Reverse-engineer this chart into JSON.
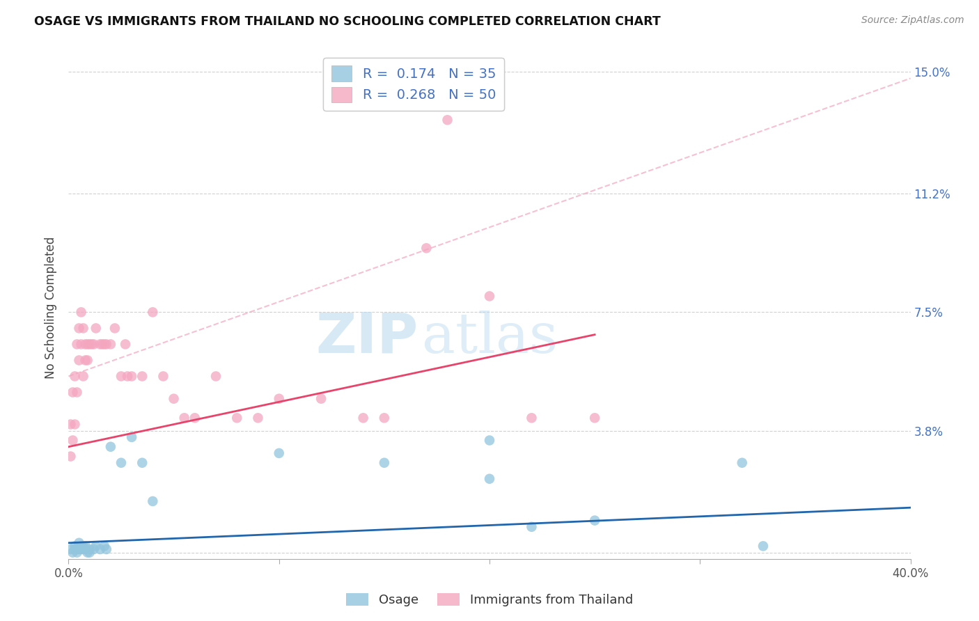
{
  "title": "OSAGE VS IMMIGRANTS FROM THAILAND NO SCHOOLING COMPLETED CORRELATION CHART",
  "source": "Source: ZipAtlas.com",
  "ylabel": "No Schooling Completed",
  "xlim": [
    0.0,
    0.4
  ],
  "ylim": [
    -0.002,
    0.155
  ],
  "xticks": [
    0.0,
    0.1,
    0.2,
    0.3,
    0.4
  ],
  "xticklabels": [
    "0.0%",
    "",
    "",
    "",
    "40.0%"
  ],
  "ytick_positions": [
    0.0,
    0.038,
    0.075,
    0.112,
    0.15
  ],
  "ytick_labels": [
    "",
    "3.8%",
    "7.5%",
    "11.2%",
    "15.0%"
  ],
  "legend_r_osage": "0.174",
  "legend_n_osage": "35",
  "legend_r_thai": "0.268",
  "legend_n_thai": "50",
  "osage_color": "#92c5de",
  "thai_color": "#f4a6bf",
  "osage_line_color": "#2166ac",
  "thai_line_color": "#e8436a",
  "dashed_line_color": "#f4a6bf",
  "watermark_color": "#cce5f5",
  "osage_points_x": [
    0.001,
    0.002,
    0.003,
    0.003,
    0.004,
    0.004,
    0.005,
    0.005,
    0.006,
    0.006,
    0.007,
    0.007,
    0.008,
    0.008,
    0.009,
    0.01,
    0.01,
    0.012,
    0.013,
    0.015,
    0.017,
    0.018,
    0.02,
    0.025,
    0.03,
    0.035,
    0.04,
    0.1,
    0.15,
    0.2,
    0.2,
    0.22,
    0.25,
    0.32,
    0.33
  ],
  "osage_points_y": [
    0.001,
    0.0,
    0.002,
    0.001,
    0.001,
    0.0,
    0.003,
    0.001,
    0.002,
    0.001,
    0.002,
    0.001,
    0.002,
    0.001,
    0.0,
    0.001,
    0.0,
    0.001,
    0.002,
    0.001,
    0.002,
    0.001,
    0.033,
    0.028,
    0.036,
    0.028,
    0.016,
    0.031,
    0.028,
    0.023,
    0.035,
    0.008,
    0.01,
    0.028,
    0.002
  ],
  "thai_points_x": [
    0.001,
    0.001,
    0.002,
    0.002,
    0.003,
    0.003,
    0.004,
    0.004,
    0.005,
    0.005,
    0.006,
    0.006,
    0.007,
    0.007,
    0.008,
    0.008,
    0.009,
    0.009,
    0.01,
    0.011,
    0.012,
    0.013,
    0.015,
    0.016,
    0.017,
    0.018,
    0.02,
    0.022,
    0.025,
    0.027,
    0.028,
    0.03,
    0.035,
    0.04,
    0.045,
    0.05,
    0.055,
    0.06,
    0.07,
    0.08,
    0.09,
    0.1,
    0.12,
    0.14,
    0.15,
    0.17,
    0.18,
    0.2,
    0.22,
    0.25
  ],
  "thai_points_y": [
    0.03,
    0.04,
    0.05,
    0.035,
    0.055,
    0.04,
    0.065,
    0.05,
    0.07,
    0.06,
    0.075,
    0.065,
    0.07,
    0.055,
    0.065,
    0.06,
    0.06,
    0.065,
    0.065,
    0.065,
    0.065,
    0.07,
    0.065,
    0.065,
    0.065,
    0.065,
    0.065,
    0.07,
    0.055,
    0.065,
    0.055,
    0.055,
    0.055,
    0.075,
    0.055,
    0.048,
    0.042,
    0.042,
    0.055,
    0.042,
    0.042,
    0.048,
    0.048,
    0.042,
    0.042,
    0.095,
    0.135,
    0.08,
    0.042,
    0.042
  ],
  "osage_line_x": [
    0.0,
    0.4
  ],
  "osage_line_y": [
    0.003,
    0.014
  ],
  "thai_line_x": [
    0.0,
    0.25
  ],
  "thai_line_y": [
    0.033,
    0.068
  ],
  "dashed_line_x": [
    0.0,
    0.4
  ],
  "dashed_line_y": [
    0.055,
    0.148
  ]
}
